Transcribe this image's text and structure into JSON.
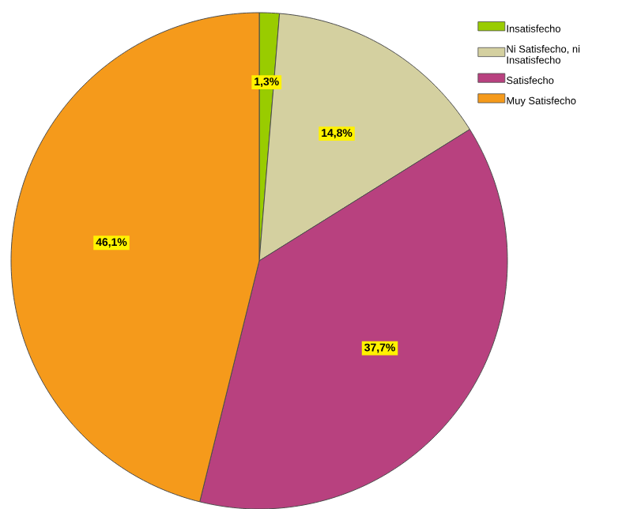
{
  "chart_data": {
    "type": "pie",
    "categories": [
      "Insatisfecho",
      "Ni Satisfecho, ni Insatisfecho",
      "Satisfecho",
      "Muy Satisfecho"
    ],
    "values": [
      1.3,
      14.8,
      37.7,
      46.1
    ],
    "colors": [
      "#99cc00",
      "#d4d0a0",
      "#b8417f",
      "#f59a1b"
    ],
    "value_labels": [
      "1,3%",
      "14,8%",
      "37,7%",
      "46,1%"
    ],
    "legend": "top right"
  }
}
